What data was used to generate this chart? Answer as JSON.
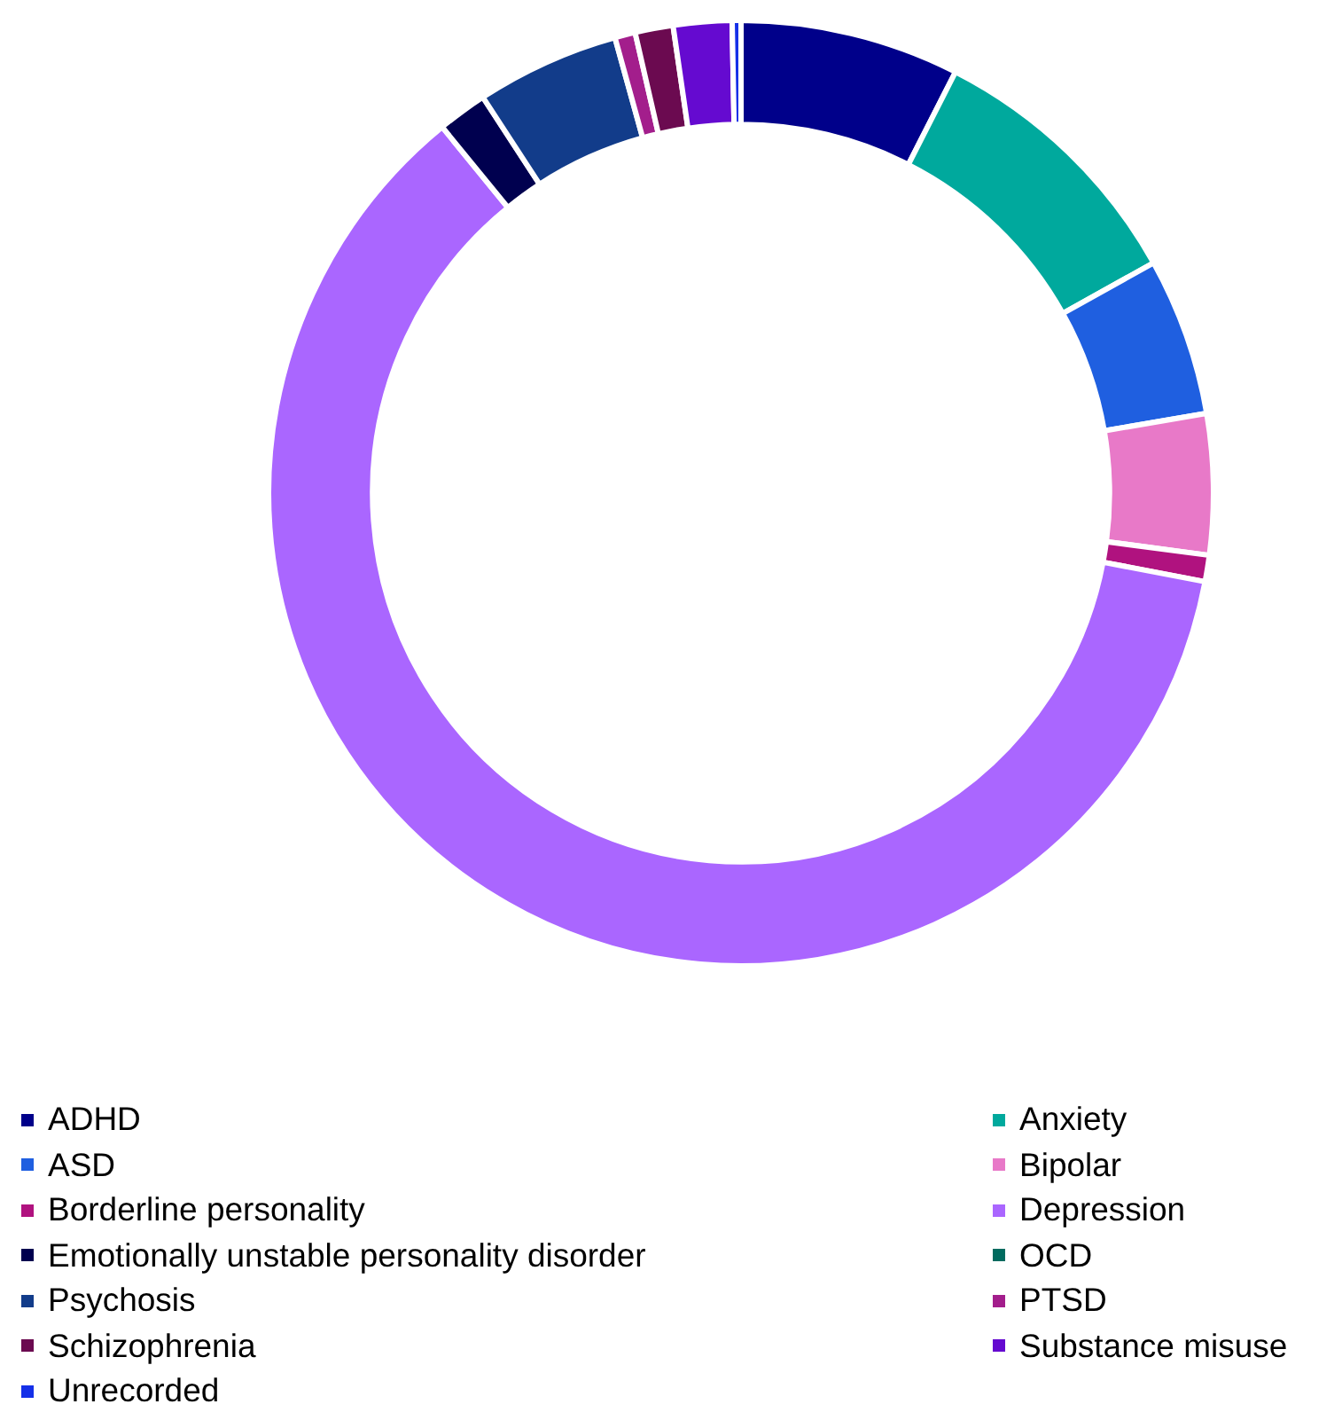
{
  "chart_data": {
    "type": "donut",
    "legend": "bottom",
    "categories": [
      "ADHD",
      "Anxiety",
      "ASD",
      "Bipolar",
      "Borderline personality",
      "Depression",
      "Emotionally unstable personality disorder",
      "OCD",
      "Psychosis",
      "PTSD",
      "Schizophrenia",
      "Substance misuse",
      "Unrecorded"
    ],
    "values": [
      7.5,
      9.4,
      5.4,
      4.8,
      0.9,
      61.1,
      1.7,
      0,
      4.9,
      0.7,
      1.3,
      2.0,
      0.3
    ],
    "colors": [
      "#00008a",
      "#00a99d",
      "#1f5fe0",
      "#e879c8",
      "#b0127f",
      "#aa66ff",
      "#00004f",
      "#006b5f",
      "#123c8a",
      "#a31e8c",
      "#6b0a50",
      "#650ad0",
      "#1530e8"
    ]
  }
}
